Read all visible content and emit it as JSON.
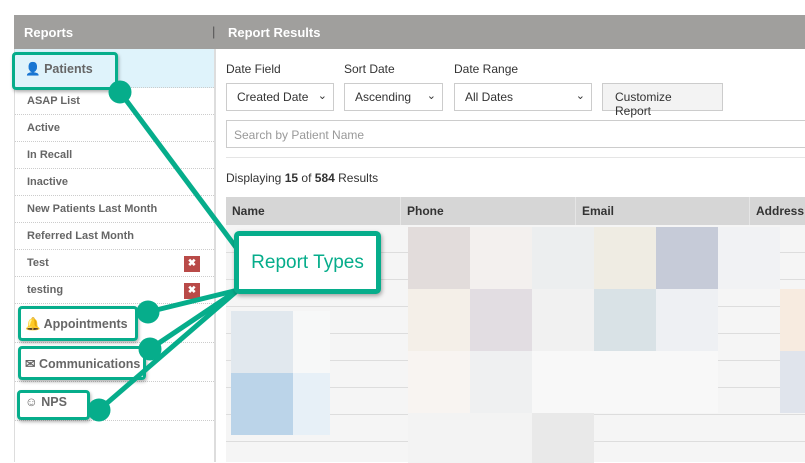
{
  "header": {
    "left_title": "Reports",
    "separator": "|",
    "right_title": "Report Results"
  },
  "sidebar": {
    "categories": [
      {
        "label": "Patients",
        "icon": "user-icon"
      },
      {
        "label": "Appointments",
        "icon": "bell-icon"
      },
      {
        "label": "Communications",
        "icon": "envelope-icon"
      },
      {
        "label": "NPS",
        "icon": "smile-icon"
      }
    ],
    "patient_items": [
      {
        "label": "ASAP List"
      },
      {
        "label": "Active"
      },
      {
        "label": "In Recall"
      },
      {
        "label": "Inactive"
      },
      {
        "label": "New Patients Last Month"
      },
      {
        "label": "Referred Last Month"
      },
      {
        "label": "Test",
        "deletable": true
      },
      {
        "label": "testing",
        "deletable": true
      }
    ],
    "delete_glyph": "✖"
  },
  "filters": {
    "date_field": {
      "label": "Date Field",
      "value": "Created Date"
    },
    "sort_date": {
      "label": "Sort Date",
      "value": "Ascending"
    },
    "date_range": {
      "label": "Date Range",
      "value": "All Dates"
    },
    "customize_label": "Customize Report",
    "search_placeholder": "Search by Patient Name"
  },
  "results": {
    "prefix": "Displaying",
    "shown": "15",
    "of": "of",
    "total": "584",
    "suffix": "Results"
  },
  "table": {
    "columns": [
      "Name",
      "Phone",
      "Email",
      "Address"
    ]
  },
  "annotation": {
    "label": "Report Types",
    "color": "#06ad8b"
  }
}
